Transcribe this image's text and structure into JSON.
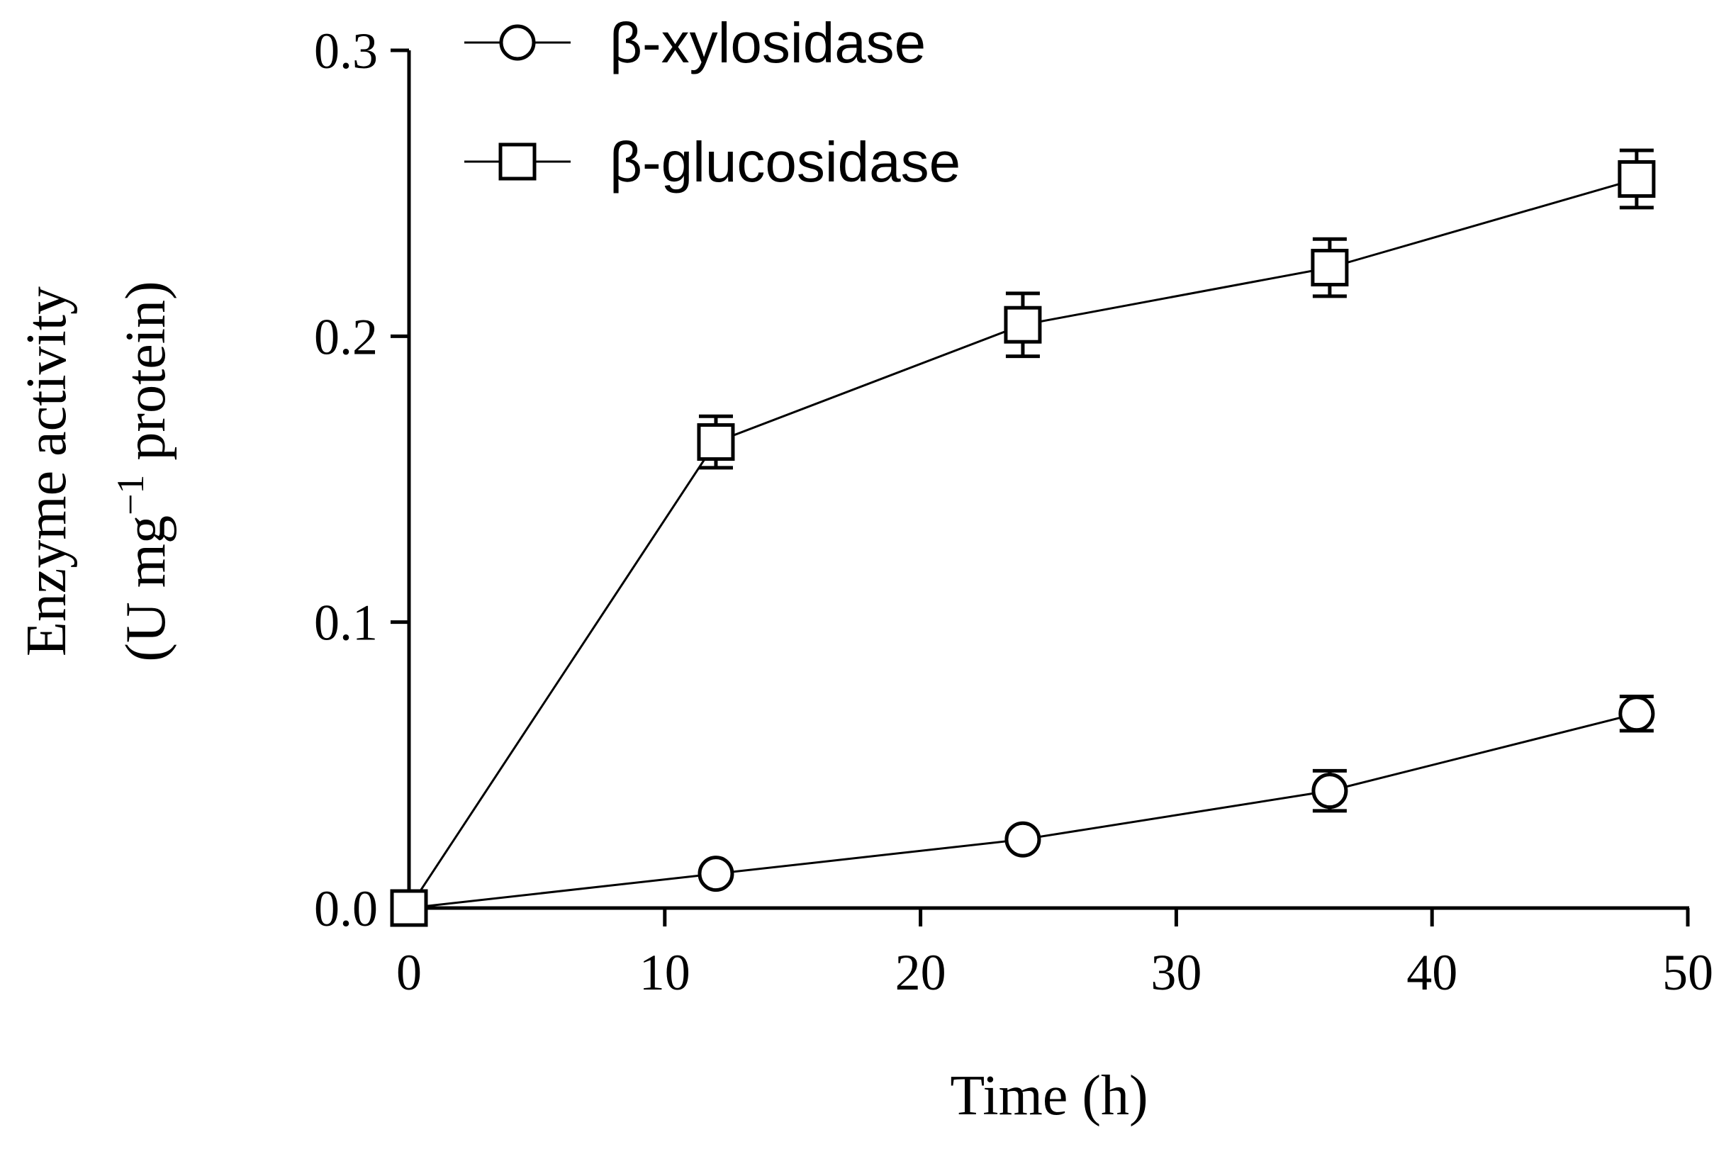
{
  "chart_data": {
    "type": "line",
    "title": "",
    "xlabel": "Time (h)",
    "ylabel_line1": "Enzyme activity",
    "ylabel_line2_prefix": "(U mg",
    "ylabel_line2_sup": "−1",
    "ylabel_line2_suffix": " protein)",
    "xlim": [
      0,
      50
    ],
    "ylim": [
      0,
      0.3
    ],
    "xticks": [
      0,
      10,
      20,
      30,
      40,
      50
    ],
    "xtick_labels": [
      "0",
      "10",
      "20",
      "30",
      "40",
      "50"
    ],
    "yticks": [
      0.0,
      0.1,
      0.2,
      0.3
    ],
    "ytick_labels": [
      "0.0",
      "0.1",
      "0.2",
      "0.3"
    ],
    "grid": false,
    "legend_position": "top-left",
    "series": [
      {
        "name": "β-xylosidase",
        "marker": "circle",
        "x": [
          0,
          12,
          24,
          36,
          48
        ],
        "y": [
          0.0,
          0.012,
          0.024,
          0.041,
          0.068
        ],
        "err": [
          0.0,
          0.0,
          0.0,
          0.007,
          0.006
        ]
      },
      {
        "name": "β-glucosidase",
        "marker": "square",
        "x": [
          0,
          12,
          24,
          36,
          48
        ],
        "y": [
          0.0,
          0.163,
          0.204,
          0.224,
          0.255
        ],
        "err": [
          0.0,
          0.009,
          0.011,
          0.01,
          0.01
        ]
      }
    ]
  }
}
